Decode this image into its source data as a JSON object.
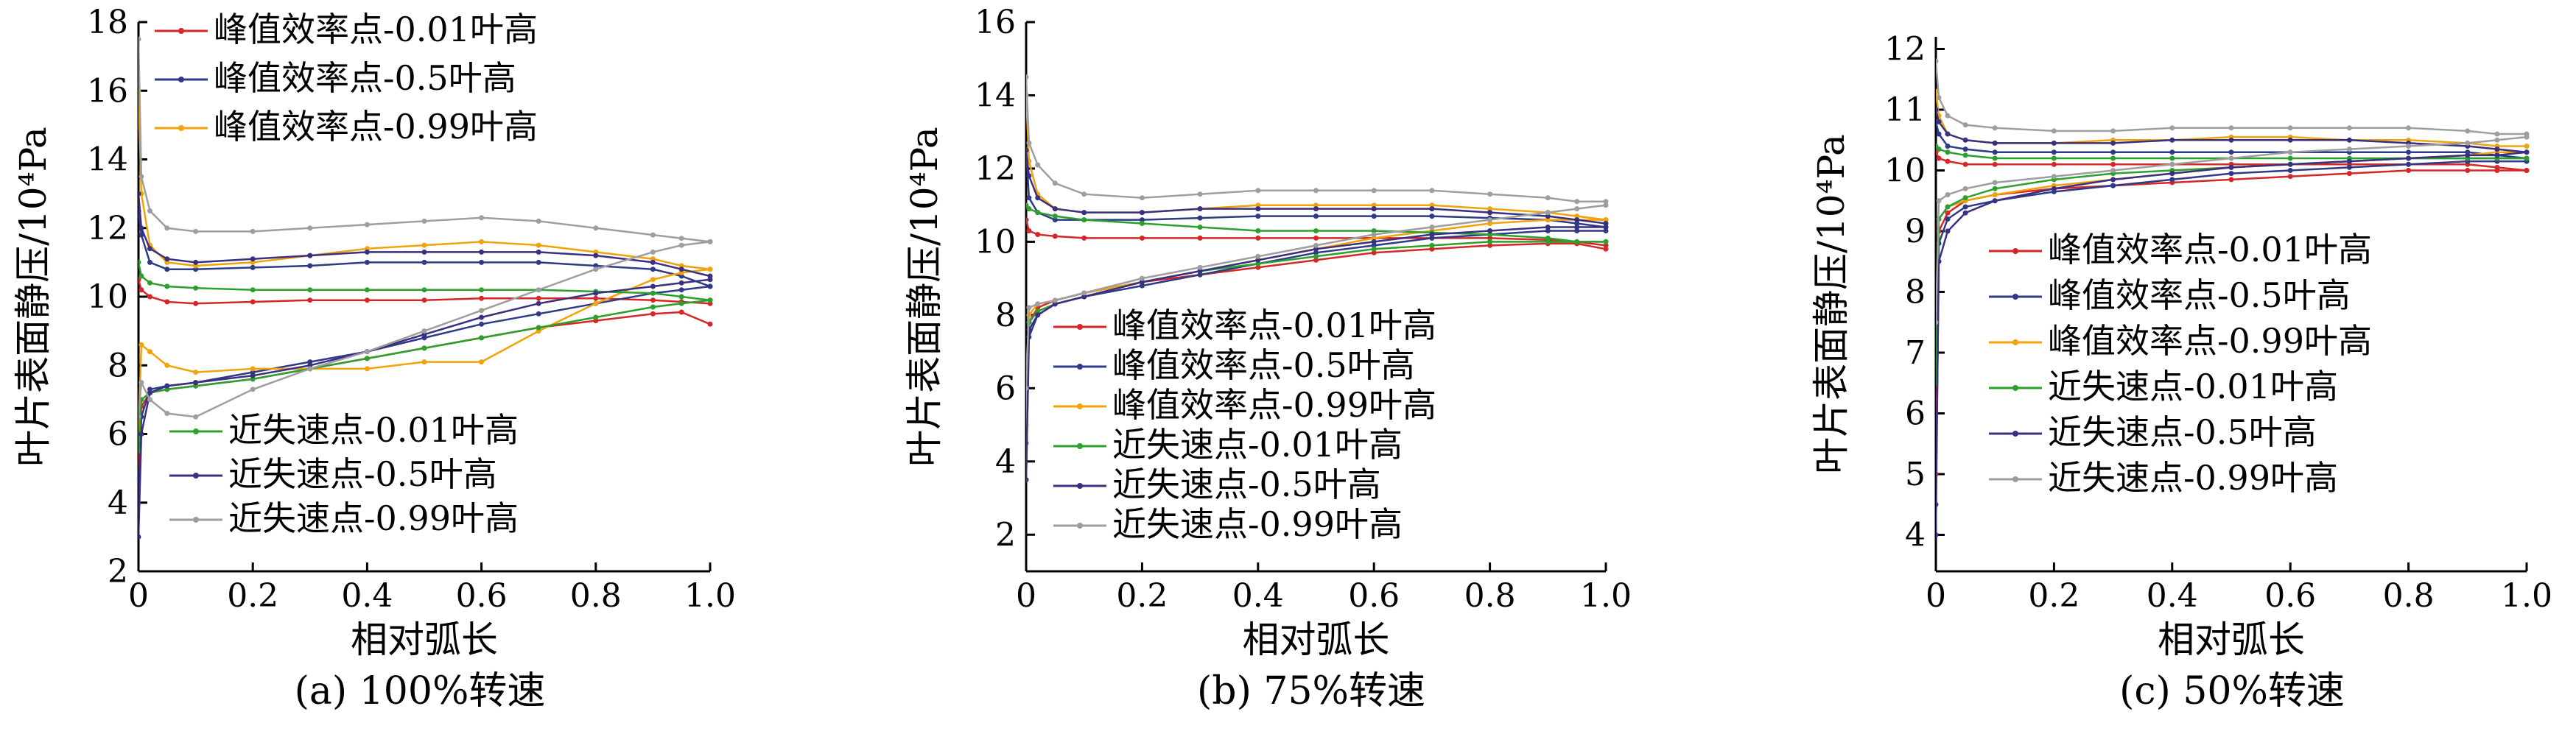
{
  "chart_data": [
    {
      "type": "line",
      "caption": "(a) 100%转速",
      "xlabel": "相对弧长",
      "ylabel": "叶片表面静压/10⁴Pa",
      "xlim": [
        0,
        1.0
      ],
      "ylim": [
        2,
        18
      ],
      "xticks": [
        "0",
        "0.2",
        "0.4",
        "0.6",
        "0.8",
        "1.0"
      ],
      "yticks": [
        "2",
        "4",
        "6",
        "8",
        "10",
        "12",
        "14",
        "16",
        "18"
      ],
      "legend_groups": [
        {
          "placement": "top-right",
          "entries": [
            "峰值效率点-0.01叶高",
            "峰值效率点-0.5叶高",
            "峰值效率点-0.99叶高"
          ]
        },
        {
          "placement": "bottom-right",
          "entries": [
            "近失速点-0.01叶高",
            "近失速点-0.5叶高",
            "近失速点-0.99叶高"
          ]
        }
      ],
      "x": [
        0,
        0.005,
        0.02,
        0.05,
        0.1,
        0.2,
        0.3,
        0.4,
        0.5,
        0.6,
        0.7,
        0.8,
        0.9,
        0.95,
        1.0
      ],
      "series": [
        {
          "name": "峰值效率点-0.01叶高",
          "color": "#d62728",
          "pressure": [
            10.5,
            10.2,
            10.0,
            9.85,
            9.8,
            9.85,
            9.9,
            9.9,
            9.9,
            9.95,
            9.95,
            9.95,
            9.9,
            9.85,
            9.8
          ],
          "suction": [
            5.0,
            6.8,
            7.2,
            7.3,
            7.4,
            7.6,
            7.9,
            8.2,
            8.5,
            8.8,
            9.1,
            9.3,
            9.5,
            9.55,
            9.2
          ]
        },
        {
          "name": "峰值效率点-0.5叶高",
          "color": "#2e3a87",
          "pressure": [
            12.5,
            11.8,
            11.0,
            10.8,
            10.8,
            10.85,
            10.9,
            11.0,
            11.0,
            11.0,
            11.0,
            10.9,
            10.8,
            10.6,
            10.3
          ],
          "suction": [
            4.0,
            6.5,
            7.3,
            7.4,
            7.5,
            7.8,
            8.1,
            8.4,
            8.8,
            9.2,
            9.5,
            9.8,
            10.1,
            10.2,
            10.3
          ]
        },
        {
          "name": "峰值效率点-0.99叶高",
          "color": "#f0a30a",
          "pressure": [
            16.0,
            13.0,
            11.5,
            11.0,
            10.9,
            11.0,
            11.2,
            11.4,
            11.5,
            11.6,
            11.5,
            11.3,
            11.1,
            10.9,
            10.8
          ],
          "suction": [
            6.0,
            8.6,
            8.4,
            8.0,
            7.8,
            7.9,
            7.9,
            7.9,
            8.1,
            8.1,
            9.0,
            9.8,
            10.5,
            10.7,
            10.8
          ]
        },
        {
          "name": "近失速点-0.01叶高",
          "color": "#2ca02c",
          "pressure": [
            11.0,
            10.6,
            10.4,
            10.3,
            10.25,
            10.2,
            10.2,
            10.2,
            10.2,
            10.2,
            10.2,
            10.15,
            10.1,
            10.0,
            9.9
          ],
          "suction": [
            5.5,
            7.0,
            7.2,
            7.3,
            7.4,
            7.6,
            7.9,
            8.2,
            8.5,
            8.8,
            9.1,
            9.4,
            9.7,
            9.8,
            9.9
          ]
        },
        {
          "name": "近失速点-0.5叶高",
          "color": "#3a2f80",
          "pressure": [
            13.0,
            12.0,
            11.4,
            11.1,
            11.0,
            11.1,
            11.2,
            11.3,
            11.3,
            11.3,
            11.3,
            11.2,
            11.0,
            10.8,
            10.6
          ],
          "suction": [
            3.0,
            6.0,
            7.2,
            7.4,
            7.5,
            7.7,
            8.0,
            8.4,
            8.9,
            9.4,
            9.8,
            10.1,
            10.3,
            10.4,
            10.5
          ]
        },
        {
          "name": "近失速点-0.99叶高",
          "color": "#9e9e9e",
          "pressure": [
            17.5,
            13.5,
            12.5,
            12.0,
            11.9,
            11.9,
            12.0,
            12.1,
            12.2,
            12.3,
            12.2,
            12.0,
            11.8,
            11.7,
            11.6
          ],
          "suction": [
            6.5,
            7.5,
            7.0,
            6.6,
            6.5,
            7.3,
            7.9,
            8.4,
            9.0,
            9.6,
            10.2,
            10.8,
            11.3,
            11.5,
            11.6
          ]
        }
      ]
    },
    {
      "type": "line",
      "caption": "(b) 75%转速",
      "xlabel": "相对弧长",
      "ylabel": "叶片表面静压/10⁴Pa",
      "xlim": [
        0,
        1.0
      ],
      "ylim": [
        1,
        16
      ],
      "xticks": [
        "0",
        "0.2",
        "0.4",
        "0.6",
        "0.8",
        "1.0"
      ],
      "yticks": [
        "2",
        "4",
        "6",
        "8",
        "10",
        "12",
        "14",
        "16"
      ],
      "legend_groups": [
        {
          "placement": "bottom-right",
          "entries": [
            "峰值效率点-0.01叶高",
            "峰值效率点-0.5叶高",
            "峰值效率点-0.99叶高",
            "近失速点-0.01叶高",
            "近失速点-0.5叶高",
            "近失速点-0.99叶高"
          ]
        }
      ],
      "x": [
        0,
        0.005,
        0.02,
        0.05,
        0.1,
        0.2,
        0.3,
        0.4,
        0.5,
        0.6,
        0.7,
        0.8,
        0.9,
        0.95,
        1.0
      ],
      "series": [
        {
          "name": "峰值效率点-0.01叶高",
          "color": "#d62728",
          "pressure": [
            10.6,
            10.3,
            10.2,
            10.15,
            10.1,
            10.1,
            10.1,
            10.1,
            10.1,
            10.1,
            10.1,
            10.1,
            10.05,
            10.0,
            9.9
          ],
          "suction": [
            4.5,
            7.8,
            8.2,
            8.4,
            8.6,
            8.9,
            9.1,
            9.3,
            9.5,
            9.7,
            9.8,
            9.9,
            9.95,
            9.95,
            9.8
          ]
        },
        {
          "name": "峰值效率点-0.5叶高",
          "color": "#2e3a87",
          "pressure": [
            12.5,
            11.2,
            10.8,
            10.6,
            10.6,
            10.6,
            10.65,
            10.7,
            10.7,
            10.7,
            10.7,
            10.65,
            10.6,
            10.5,
            10.4
          ],
          "suction": [
            3.5,
            7.4,
            8.0,
            8.3,
            8.5,
            8.8,
            9.1,
            9.4,
            9.7,
            9.9,
            10.1,
            10.2,
            10.3,
            10.3,
            10.3
          ]
        },
        {
          "name": "峰值效率点-0.99叶高",
          "color": "#f0a30a",
          "pressure": [
            14.0,
            12.2,
            11.3,
            10.9,
            10.8,
            10.8,
            10.9,
            11.0,
            11.0,
            11.0,
            11.0,
            10.9,
            10.8,
            10.7,
            10.6
          ],
          "suction": [
            5.0,
            8.0,
            8.3,
            8.4,
            8.6,
            8.9,
            9.2,
            9.5,
            9.8,
            10.1,
            10.3,
            10.5,
            10.6,
            10.6,
            10.6
          ]
        },
        {
          "name": "近失速点-0.01叶高",
          "color": "#2ca02c",
          "pressure": [
            11.0,
            10.9,
            10.8,
            10.7,
            10.6,
            10.5,
            10.4,
            10.3,
            10.3,
            10.3,
            10.25,
            10.2,
            10.1,
            10.0,
            10.0
          ],
          "suction": [
            6.5,
            7.8,
            8.1,
            8.3,
            8.5,
            8.9,
            9.2,
            9.4,
            9.6,
            9.8,
            9.9,
            10.0,
            10.0,
            10.0,
            10.0
          ]
        },
        {
          "name": "近失速点-0.5叶高",
          "color": "#3a2f80",
          "pressure": [
            12.5,
            11.8,
            11.2,
            10.9,
            10.8,
            10.8,
            10.9,
            10.9,
            10.9,
            10.9,
            10.9,
            10.8,
            10.7,
            10.6,
            10.5
          ],
          "suction": [
            3.5,
            7.6,
            8.0,
            8.3,
            8.5,
            8.9,
            9.2,
            9.5,
            9.8,
            10.0,
            10.2,
            10.3,
            10.4,
            10.4,
            10.4
          ]
        },
        {
          "name": "近失速点-0.99叶高",
          "color": "#9e9e9e",
          "pressure": [
            14.5,
            12.7,
            12.1,
            11.6,
            11.3,
            11.2,
            11.3,
            11.4,
            11.4,
            11.4,
            11.4,
            11.3,
            11.2,
            11.1,
            11.1
          ],
          "suction": [
            6.0,
            8.2,
            8.3,
            8.4,
            8.6,
            9.0,
            9.3,
            9.6,
            9.9,
            10.2,
            10.4,
            10.6,
            10.8,
            10.9,
            11.0
          ]
        }
      ]
    },
    {
      "type": "line",
      "caption": "(c) 50%转速",
      "xlabel": "相对弧长",
      "ylabel": "叶片表面静压/10⁴Pa",
      "xlim": [
        0,
        1.0
      ],
      "ylim": [
        3.4,
        12.2
      ],
      "xticks": [
        "0",
        "0.2",
        "0.4",
        "0.6",
        "0.8",
        "1.0"
      ],
      "yticks": [
        "4",
        "5",
        "6",
        "7",
        "8",
        "9",
        "10",
        "11",
        "12"
      ],
      "legend_groups": [
        {
          "placement": "right",
          "entries": [
            "峰值效率点-0.01叶高",
            "峰值效率点-0.5叶高",
            "峰值效率点-0.99叶高",
            "近失速点-0.01叶高",
            "近失速点-0.5叶高",
            "近失速点-0.99叶高"
          ]
        }
      ],
      "x": [
        0,
        0.005,
        0.02,
        0.05,
        0.1,
        0.2,
        0.3,
        0.4,
        0.5,
        0.6,
        0.7,
        0.8,
        0.9,
        0.95,
        1.0
      ],
      "series": [
        {
          "name": "峰值效率点-0.01叶高",
          "color": "#d62728",
          "pressure": [
            10.3,
            10.2,
            10.15,
            10.1,
            10.1,
            10.1,
            10.1,
            10.1,
            10.1,
            10.1,
            10.1,
            10.1,
            10.1,
            10.05,
            10.0
          ],
          "suction": [
            5.0,
            9.0,
            9.3,
            9.5,
            9.6,
            9.7,
            9.75,
            9.8,
            9.85,
            9.9,
            9.95,
            10.0,
            10.0,
            10.0,
            10.0
          ]
        },
        {
          "name": "峰值效率点-0.5叶高",
          "color": "#2e3a87",
          "pressure": [
            10.8,
            10.6,
            10.4,
            10.35,
            10.3,
            10.3,
            10.3,
            10.3,
            10.3,
            10.3,
            10.3,
            10.3,
            10.3,
            10.25,
            10.2
          ],
          "suction": [
            4.0,
            8.8,
            9.2,
            9.4,
            9.5,
            9.65,
            9.75,
            9.85,
            9.95,
            10.0,
            10.05,
            10.1,
            10.15,
            10.15,
            10.15
          ]
        },
        {
          "name": "峰值效率点-0.99叶高",
          "color": "#f0a30a",
          "pressure": [
            11.3,
            10.9,
            10.6,
            10.5,
            10.45,
            10.45,
            10.5,
            10.5,
            10.55,
            10.55,
            10.5,
            10.5,
            10.45,
            10.4,
            10.4
          ],
          "suction": [
            7.0,
            9.2,
            9.4,
            9.5,
            9.6,
            9.75,
            9.85,
            9.95,
            10.05,
            10.1,
            10.15,
            10.2,
            10.25,
            10.3,
            10.3
          ]
        },
        {
          "name": "近失速点-0.01叶高",
          "color": "#2ca02c",
          "pressure": [
            10.4,
            10.35,
            10.3,
            10.25,
            10.2,
            10.2,
            10.2,
            10.2,
            10.2,
            10.2,
            10.2,
            10.2,
            10.2,
            10.2,
            10.2
          ],
          "suction": [
            6.5,
            9.2,
            9.4,
            9.55,
            9.7,
            9.85,
            9.95,
            10.0,
            10.05,
            10.1,
            10.15,
            10.2,
            10.2,
            10.2,
            10.2
          ]
        },
        {
          "name": "近失速点-0.5叶高",
          "color": "#3a2f80",
          "pressure": [
            11.0,
            10.8,
            10.6,
            10.5,
            10.45,
            10.45,
            10.45,
            10.5,
            10.5,
            10.5,
            10.5,
            10.45,
            10.4,
            10.35,
            10.3
          ],
          "suction": [
            4.5,
            8.5,
            9.0,
            9.3,
            9.5,
            9.7,
            9.85,
            9.95,
            10.05,
            10.1,
            10.15,
            10.2,
            10.25,
            10.25,
            10.3
          ]
        },
        {
          "name": "近失速点-0.99叶高",
          "color": "#9e9e9e",
          "pressure": [
            11.8,
            11.2,
            10.9,
            10.75,
            10.7,
            10.65,
            10.65,
            10.7,
            10.7,
            10.7,
            10.7,
            10.7,
            10.65,
            10.6,
            10.6
          ],
          "suction": [
            7.5,
            9.5,
            9.6,
            9.7,
            9.8,
            9.9,
            10.0,
            10.1,
            10.2,
            10.3,
            10.35,
            10.4,
            10.45,
            10.5,
            10.55
          ]
        }
      ]
    }
  ]
}
